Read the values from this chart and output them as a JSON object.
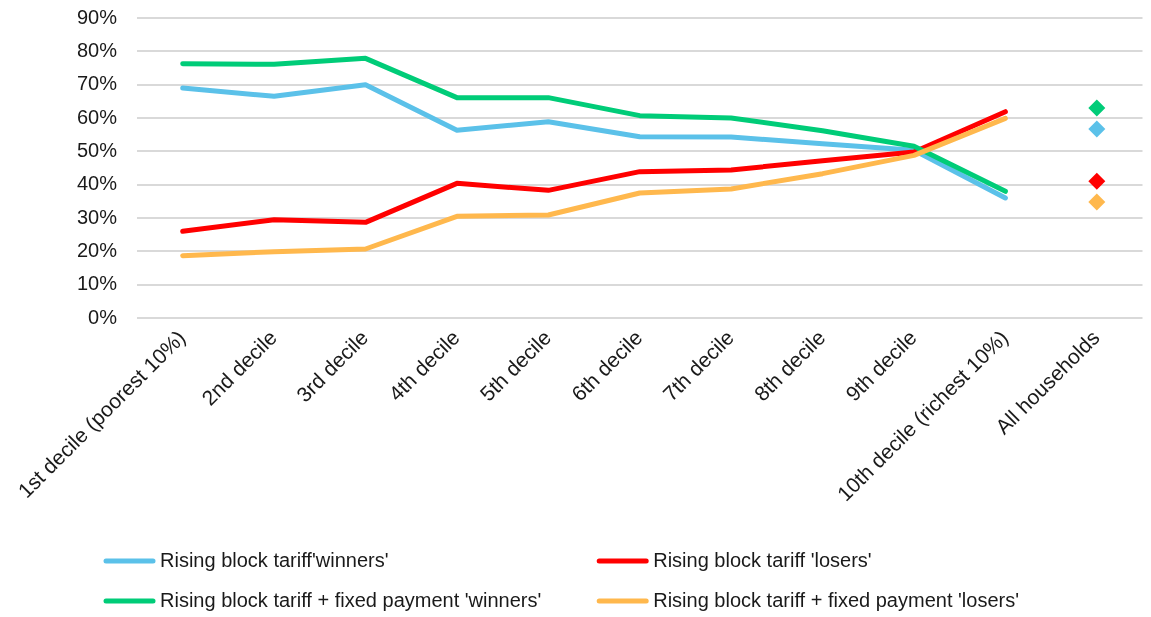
{
  "chart_data": {
    "type": "line",
    "categories": [
      "1st decile (poorest 10%)",
      "2nd decile",
      "3rd decile",
      "4th decile",
      "5th decile",
      "6th decile",
      "7th decile",
      "8th decile",
      "9th decile",
      "10th decile (richest 10%)",
      "All households"
    ],
    "series": [
      {
        "name": "Rising block tariff'winners'",
        "color": "#5bc1e9",
        "values": [
          69.0,
          66.5,
          70.0,
          56.3,
          58.9,
          54.4,
          54.3,
          52.3,
          50.3,
          36.0,
          null
        ]
      },
      {
        "name": "Rising block tariff 'losers'",
        "color": "#ff0000",
        "values": [
          26.0,
          29.5,
          28.7,
          40.4,
          38.3,
          43.9,
          44.4,
          47.2,
          49.8,
          61.9,
          null
        ]
      },
      {
        "name": "Rising block tariff + fixed payment 'winners'",
        "color": "#00cc78",
        "values": [
          76.3,
          76.1,
          77.9,
          66.1,
          66.1,
          60.7,
          60.0,
          56.2,
          51.5,
          38.0,
          null
        ]
      },
      {
        "name": "Rising block tariff + fixed payment 'losers'",
        "color": "#ffb84d",
        "values": [
          18.7,
          19.9,
          20.7,
          30.5,
          30.9,
          37.5,
          38.7,
          43.3,
          48.8,
          59.9,
          null
        ]
      },
      {
        "type": "scatter",
        "marker": "diamond",
        "color": "#5bc1e9",
        "values": [
          null,
          null,
          null,
          null,
          null,
          null,
          null,
          null,
          null,
          null,
          56.7
        ]
      },
      {
        "type": "scatter",
        "marker": "diamond",
        "color": "#ff0000",
        "values": [
          null,
          null,
          null,
          null,
          null,
          null,
          null,
          null,
          null,
          null,
          41.0
        ]
      },
      {
        "type": "scatter",
        "marker": "diamond",
        "color": "#00cc78",
        "values": [
          null,
          null,
          null,
          null,
          null,
          null,
          null,
          null,
          null,
          null,
          63.0
        ]
      },
      {
        "type": "scatter",
        "marker": "diamond",
        "color": "#ffb84d",
        "values": [
          null,
          null,
          null,
          null,
          null,
          null,
          null,
          null,
          null,
          null,
          34.8
        ]
      }
    ],
    "ylim": [
      0,
      90
    ],
    "yticks": [
      {
        "value": 0,
        "label": "0%"
      },
      {
        "value": 10,
        "label": "10%"
      },
      {
        "value": 20,
        "label": "20%"
      },
      {
        "value": 30,
        "label": "30%"
      },
      {
        "value": 40,
        "label": "40%"
      },
      {
        "value": 50,
        "label": "50%"
      },
      {
        "value": 60,
        "label": "60%"
      },
      {
        "value": 70,
        "label": "70%"
      },
      {
        "value": 80,
        "label": "80%"
      },
      {
        "value": 90,
        "label": "90%"
      }
    ],
    "grid": "y",
    "legend": "bottom",
    "marker": "none",
    "line_style": "solid"
  }
}
